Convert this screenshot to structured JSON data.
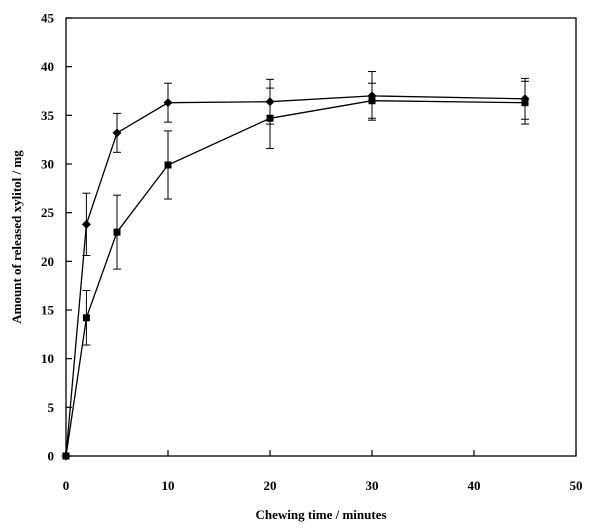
{
  "chart_data": {
    "type": "line",
    "title": "",
    "xlabel": "Chewing time / minutes",
    "ylabel": "Amount of released xylitol / mg",
    "xlim": [
      0,
      50
    ],
    "ylim": [
      0,
      45
    ],
    "xticks": [
      0,
      10,
      20,
      30,
      40,
      50
    ],
    "yticks": [
      0,
      5,
      10,
      15,
      20,
      25,
      30,
      35,
      40,
      45
    ],
    "grid": false,
    "legend": "none",
    "series": [
      {
        "marker": "diamond",
        "color": "#000000",
        "points": [
          {
            "x": 0,
            "y": 0,
            "err": 0
          },
          {
            "x": 2,
            "y": 23.8,
            "err": 3.2
          },
          {
            "x": 5,
            "y": 33.2,
            "err": 2.0
          },
          {
            "x": 10,
            "y": 36.3,
            "err": 2.0
          },
          {
            "x": 20,
            "y": 36.4,
            "err": 2.3
          },
          {
            "x": 30,
            "y": 37.0,
            "err": 2.5
          },
          {
            "x": 45,
            "y": 36.7,
            "err": 2.1
          }
        ]
      },
      {
        "marker": "square",
        "color": "#000000",
        "points": [
          {
            "x": 0,
            "y": 0,
            "err": 0
          },
          {
            "x": 2,
            "y": 14.2,
            "err": 2.8
          },
          {
            "x": 5,
            "y": 23.0,
            "err": 3.8
          },
          {
            "x": 10,
            "y": 29.9,
            "err": 3.5
          },
          {
            "x": 20,
            "y": 34.7,
            "err": 3.1
          },
          {
            "x": 30,
            "y": 36.5,
            "err": 1.8
          },
          {
            "x": 45,
            "y": 36.3,
            "err": 2.2
          }
        ]
      }
    ]
  }
}
